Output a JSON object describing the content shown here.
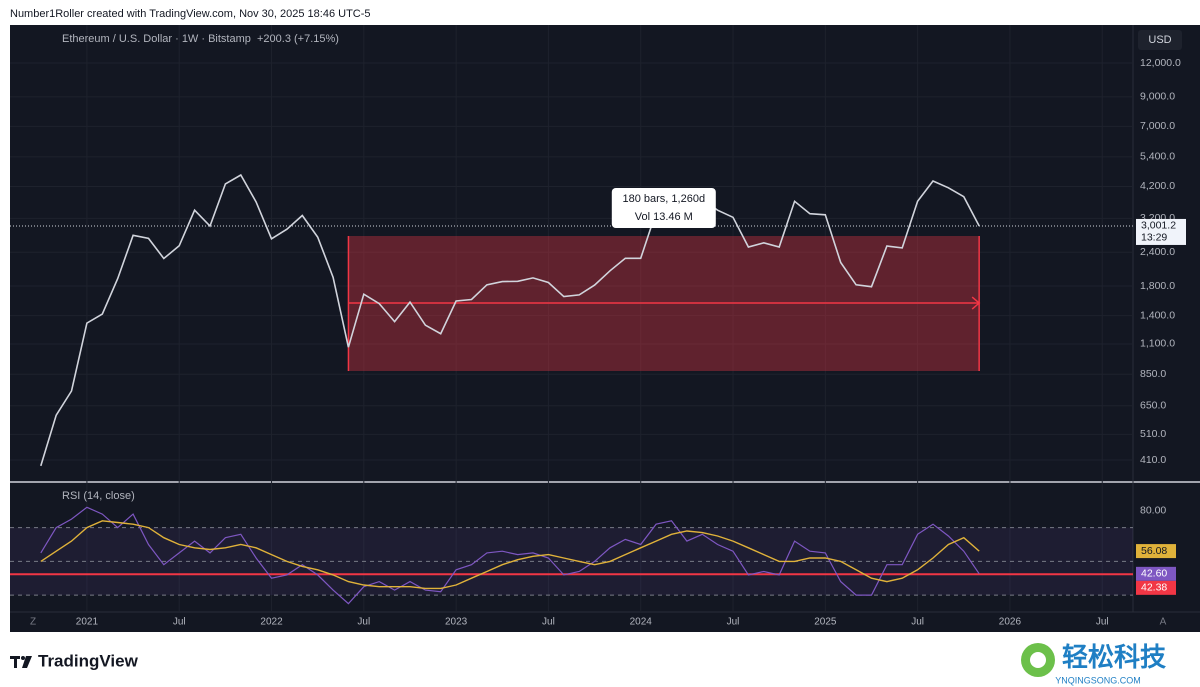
{
  "header": {
    "attribution": "Number1Roller created with TradingView.com, Nov 30, 2025 18:46 UTC-5"
  },
  "chart_data": [
    {
      "type": "line",
      "title": "Ethereum / U.S. Dollar · 1W · Bitstamp",
      "change": "+200.3 (+7.15%)",
      "currency": "USD",
      "log_scale": true,
      "grid": true,
      "color": "#d1d4dc",
      "x": [
        "2020-10",
        "2020-11",
        "2020-12",
        "2021-01",
        "2021-02",
        "2021-03",
        "2021-04",
        "2021-05",
        "2021-06",
        "2021-07",
        "2021-08",
        "2021-09",
        "2021-10",
        "2021-11",
        "2021-12",
        "2022-01",
        "2022-02",
        "2022-03",
        "2022-04",
        "2022-05",
        "2022-06",
        "2022-07",
        "2022-08",
        "2022-09",
        "2022-10",
        "2022-11",
        "2022-12",
        "2023-01",
        "2023-02",
        "2023-03",
        "2023-04",
        "2023-05",
        "2023-06",
        "2023-07",
        "2023-08",
        "2023-09",
        "2023-10",
        "2023-11",
        "2023-12",
        "2024-01",
        "2024-02",
        "2024-03",
        "2024-04",
        "2024-05",
        "2024-06",
        "2024-07",
        "2024-08",
        "2024-09",
        "2024-10",
        "2024-11",
        "2024-12",
        "2025-01",
        "2025-02",
        "2025-03",
        "2025-04",
        "2025-05",
        "2025-06",
        "2025-07",
        "2025-08",
        "2025-09",
        "2025-10",
        "2025-11"
      ],
      "values": [
        390,
        600,
        737,
        1314,
        1418,
        1918,
        2772,
        2700,
        2275,
        2536,
        3430,
        3000,
        4290,
        4630,
        3680,
        2690,
        2920,
        3280,
        2730,
        1940,
        1070,
        1680,
        1550,
        1330,
        1570,
        1290,
        1200,
        1585,
        1605,
        1820,
        1870,
        1875,
        1930,
        1855,
        1645,
        1670,
        1815,
        2050,
        2280,
        2280,
        3380,
        3500,
        3010,
        3760,
        3430,
        3230,
        2510,
        2600,
        2510,
        3700,
        3330,
        3300,
        2200,
        1820,
        1790,
        2530,
        2490,
        3700,
        4400,
        4150,
        3850,
        3001.2
      ],
      "xlim": [
        "2020-08",
        "2026-09"
      ],
      "ylim": [
        340,
        16580
      ],
      "yticks": [
        {
          "value": 410,
          "label": "410.0"
        },
        {
          "value": 510,
          "label": "510.0"
        },
        {
          "value": 650,
          "label": "650.0"
        },
        {
          "value": 850,
          "label": "850.0"
        },
        {
          "value": 1100,
          "label": "1,100.0"
        },
        {
          "value": 1400,
          "label": "1,400.0"
        },
        {
          "value": 1800,
          "label": "1,800.0"
        },
        {
          "value": 2400,
          "label": "2,400.0"
        },
        {
          "value": 3200,
          "label": "3,200.0"
        },
        {
          "value": 4200,
          "label": "4,200.0"
        },
        {
          "value": 5400,
          "label": "5,400.0"
        },
        {
          "value": 7000,
          "label": "7,000.0"
        },
        {
          "value": 9000,
          "label": "9,000.0"
        },
        {
          "value": 12000,
          "label": "12,000.0"
        }
      ],
      "last_price": {
        "value": 3001.2,
        "label": "3,001.2"
      },
      "countdown": "13:29",
      "range_box": {
        "x": [
          "2022-06",
          "2025-11"
        ],
        "y": [
          874,
          2755
        ],
        "mid": 1558,
        "color": "#f23645",
        "bars": "180 bars, 1,260d",
        "volume": "Vol 13.46 M"
      }
    },
    {
      "type": "line",
      "title": "RSI (14, close)",
      "x": [
        "2020-10",
        "2020-11",
        "2020-12",
        "2021-01",
        "2021-02",
        "2021-03",
        "2021-04",
        "2021-05",
        "2021-06",
        "2021-07",
        "2021-08",
        "2021-09",
        "2021-10",
        "2021-11",
        "2021-12",
        "2022-01",
        "2022-02",
        "2022-03",
        "2022-04",
        "2022-05",
        "2022-06",
        "2022-07",
        "2022-08",
        "2022-09",
        "2022-10",
        "2022-11",
        "2022-12",
        "2023-01",
        "2023-02",
        "2023-03",
        "2023-04",
        "2023-05",
        "2023-06",
        "2023-07",
        "2023-08",
        "2023-09",
        "2023-10",
        "2023-11",
        "2023-12",
        "2024-01",
        "2024-02",
        "2024-03",
        "2024-04",
        "2024-05",
        "2024-06",
        "2024-07",
        "2024-08",
        "2024-09",
        "2024-10",
        "2024-11",
        "2024-12",
        "2025-01",
        "2025-02",
        "2025-03",
        "2025-04",
        "2025-05",
        "2025-06",
        "2025-07",
        "2025-08",
        "2025-09",
        "2025-10",
        "2025-11"
      ],
      "series": [
        {
          "color": "#7e57c2",
          "last_label": "42.60",
          "values": [
            55,
            70,
            75,
            82,
            78,
            70,
            78,
            60,
            48,
            55,
            62,
            55,
            64,
            66,
            52,
            40,
            42,
            48,
            42,
            33,
            25,
            35,
            38,
            33,
            38,
            33,
            32,
            45,
            48,
            55,
            56,
            54,
            55,
            52,
            42,
            44,
            50,
            58,
            63,
            60,
            72,
            74,
            62,
            66,
            60,
            56,
            42,
            44,
            42,
            62,
            56,
            55,
            38,
            30,
            30,
            48,
            48,
            66,
            72,
            65,
            56,
            42.6
          ]
        },
        {
          "color": "#e0b23a",
          "last_label": "56.08",
          "values": [
            50,
            56,
            62,
            70,
            74,
            73,
            72,
            70,
            64,
            60,
            58,
            57,
            58,
            60,
            58,
            54,
            50,
            47,
            45,
            42,
            38,
            36,
            35,
            35,
            35,
            34,
            34,
            36,
            40,
            44,
            48,
            51,
            53,
            54,
            52,
            50,
            48,
            50,
            54,
            58,
            62,
            66,
            68,
            67,
            65,
            62,
            58,
            54,
            50,
            50,
            52,
            52,
            50,
            45,
            40,
            38,
            40,
            45,
            52,
            60,
            64,
            56.08
          ]
        }
      ],
      "levels": [
        70,
        50,
        30
      ],
      "hline": {
        "value": 42.38,
        "label": "42.38",
        "color": "#f23645"
      },
      "xlim": [
        "2020-08",
        "2026-09"
      ],
      "ylim": [
        20,
        97
      ],
      "yticks": [
        {
          "value": 80,
          "label": "80.00"
        }
      ],
      "xticks": [
        {
          "value": "2021-01",
          "label": "2021"
        },
        {
          "value": "2021-07",
          "label": "Jul"
        },
        {
          "value": "2022-01",
          "label": "2022"
        },
        {
          "value": "2022-07",
          "label": "Jul"
        },
        {
          "value": "2023-01",
          "label": "2023"
        },
        {
          "value": "2023-07",
          "label": "Jul"
        },
        {
          "value": "2024-01",
          "label": "2024"
        },
        {
          "value": "2024-07",
          "label": "Jul"
        },
        {
          "value": "2025-01",
          "label": "2025"
        },
        {
          "value": "2025-07",
          "label": "Jul"
        },
        {
          "value": "2026-01",
          "label": "2026"
        },
        {
          "value": "2026-07",
          "label": "Jul"
        }
      ]
    }
  ],
  "footer": {
    "brand": "TradingView",
    "watermark": "轻松科技",
    "watermark_url": "YNQINGSONG.COM",
    "auto_button": "A",
    "zoom_button": "Z"
  }
}
